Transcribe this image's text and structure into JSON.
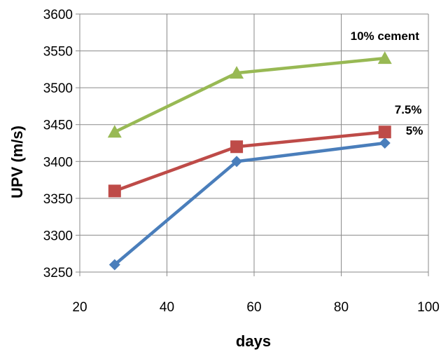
{
  "chart_data": {
    "type": "line",
    "title": "",
    "xlabel": "days",
    "ylabel": "UPV (m/s)",
    "xlim": [
      20,
      100
    ],
    "ylim": [
      3250,
      3600
    ],
    "x_ticks": [
      20,
      40,
      60,
      80,
      100
    ],
    "y_ticks": [
      3250,
      3300,
      3350,
      3400,
      3450,
      3500,
      3550,
      3600
    ],
    "grid": true,
    "legend": "none",
    "x": [
      28,
      56,
      90
    ],
    "series": [
      {
        "name": "5%",
        "values": [
          3260,
          3400,
          3425
        ],
        "color": "#4a7ebb",
        "marker": "diamond"
      },
      {
        "name": "7.5%",
        "values": [
          3360,
          3420,
          3440
        ],
        "color": "#be4b48",
        "marker": "square"
      },
      {
        "name": "10% cement",
        "values": [
          3440,
          3520,
          3540
        ],
        "color": "#98b954",
        "marker": "triangle"
      }
    ]
  }
}
